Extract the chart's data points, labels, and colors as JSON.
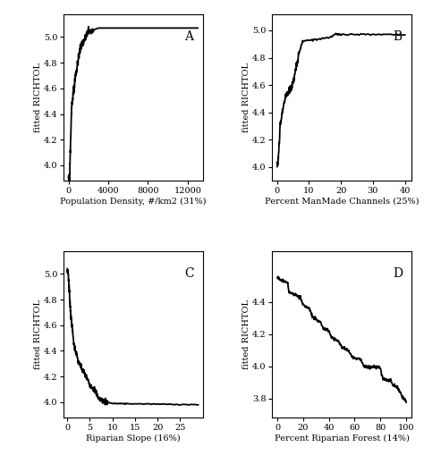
{
  "panel_A": {
    "label": "A",
    "xlabel": "Population Density, #/km2 (31%)",
    "ylabel": "fitted RICHTOL",
    "xlim": [
      -500,
      13500
    ],
    "ylim": [
      3.88,
      5.18
    ],
    "xticks": [
      0,
      4000,
      8000,
      12000
    ],
    "yticks": [
      4.0,
      4.2,
      4.4,
      4.6,
      4.8,
      5.0
    ]
  },
  "panel_B": {
    "label": "B",
    "xlabel": "Percent ManMade Channels (25%)",
    "ylabel": "fitted RICHTOL",
    "xlim": [
      -1.5,
      42
    ],
    "ylim": [
      3.9,
      5.12
    ],
    "xticks": [
      0,
      10,
      20,
      30,
      40
    ],
    "yticks": [
      4.0,
      4.2,
      4.4,
      4.6,
      4.8,
      5.0
    ]
  },
  "panel_C": {
    "label": "C",
    "xlabel": "Riparian Slope (16%)",
    "ylabel": "fitted RICHTOL",
    "xlim": [
      -0.8,
      30
    ],
    "ylim": [
      3.88,
      5.18
    ],
    "xticks": [
      0,
      5,
      10,
      15,
      20,
      25
    ],
    "yticks": [
      4.0,
      4.2,
      4.4,
      4.6,
      4.8,
      5.0
    ]
  },
  "panel_D": {
    "label": "D",
    "xlabel": "Percent Riparian Forest (14%)",
    "ylabel": "fitted RICHTOL",
    "xlim": [
      -4,
      104
    ],
    "ylim": [
      3.68,
      4.72
    ],
    "xticks": [
      0,
      20,
      40,
      60,
      80,
      100
    ],
    "yticks": [
      3.8,
      4.0,
      4.2,
      4.4
    ]
  },
  "line_color": "#000000",
  "bg_color": "#ffffff",
  "font_family": "DejaVu Serif"
}
